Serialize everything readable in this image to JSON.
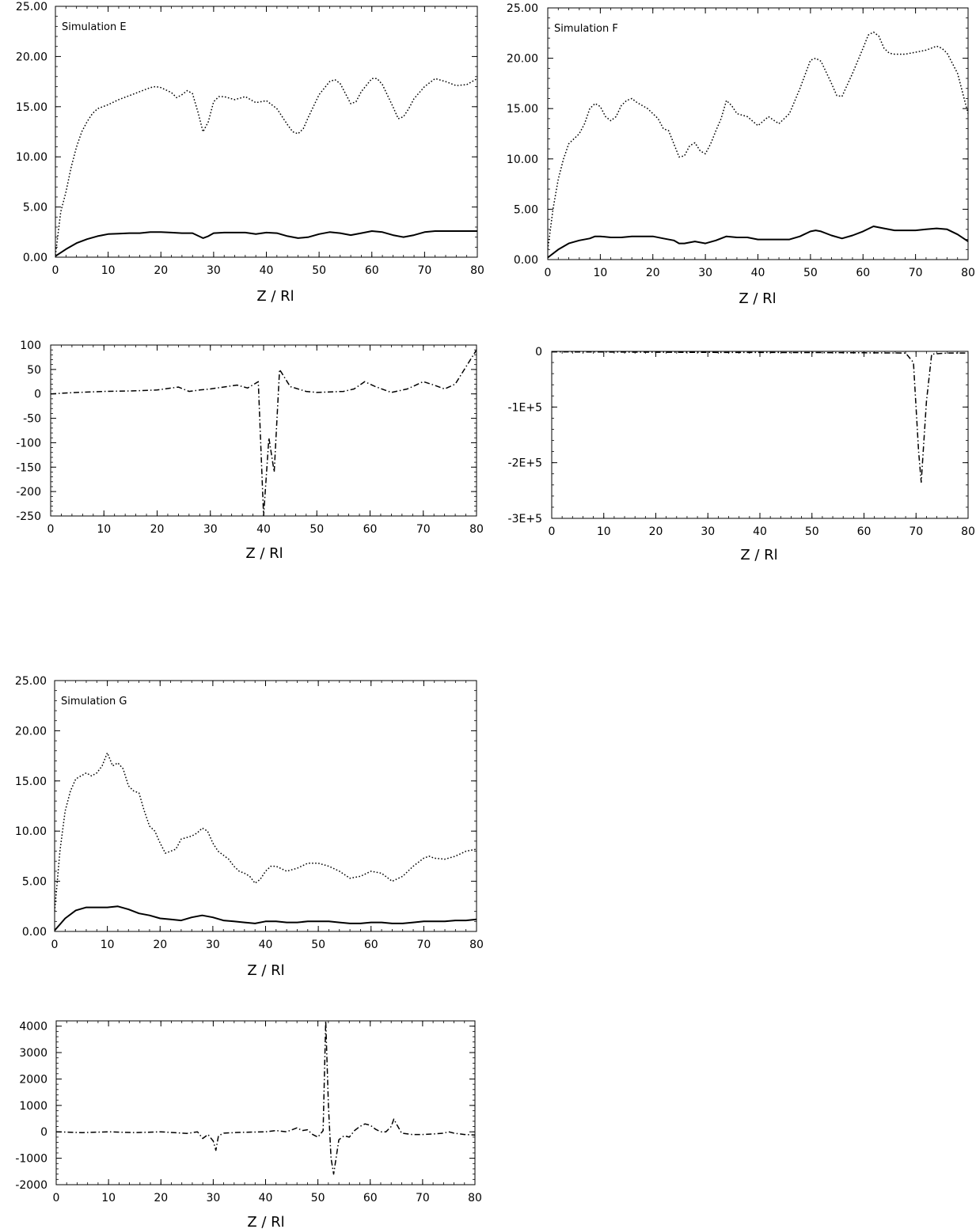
{
  "chart_data": [
    {
      "id": "E-top",
      "type": "line",
      "annotation": "Simulation E",
      "xlabel": "Z / Rl",
      "ylabel": "",
      "xlim": [
        0,
        80
      ],
      "ylim": [
        0,
        25
      ],
      "xticks": [
        0,
        10,
        20,
        30,
        40,
        50,
        60,
        70,
        80
      ],
      "yticks": [
        0,
        5,
        10,
        15,
        20,
        25
      ],
      "ytick_labels": [
        "0.00",
        "5.00",
        "10.00",
        "15.00",
        "20.00",
        "25.00"
      ],
      "series": [
        {
          "style": "dotted",
          "x": [
            0,
            1,
            2,
            3,
            4,
            5,
            6,
            7,
            8,
            9,
            10,
            12,
            14,
            16,
            18,
            19,
            20,
            22,
            23,
            24,
            25,
            26,
            27,
            28,
            29,
            30,
            31,
            32,
            34,
            36,
            38,
            40,
            42,
            44,
            45,
            46,
            47,
            48,
            50,
            52,
            53,
            54,
            56,
            57,
            58,
            60,
            61,
            62,
            64,
            65,
            66,
            67,
            68,
            70,
            72,
            74,
            76,
            78,
            80
          ],
          "y": [
            0.2,
            4.5,
            6.5,
            9,
            11,
            12.5,
            13.5,
            14.3,
            14.8,
            15,
            15.2,
            15.7,
            16.1,
            16.5,
            16.9,
            17,
            16.9,
            16.4,
            15.9,
            16.2,
            16.6,
            16.3,
            14.5,
            12.5,
            13.5,
            15.5,
            16,
            16,
            15.7,
            16,
            15.4,
            15.6,
            14.8,
            13.2,
            12.5,
            12.3,
            12.8,
            14,
            16.2,
            17.5,
            17.7,
            17.3,
            15.3,
            15.5,
            16.5,
            17.8,
            17.8,
            17.2,
            15,
            13.8,
            14,
            14.8,
            15.8,
            17,
            17.8,
            17.5,
            17.1,
            17.2,
            17.8
          ]
        },
        {
          "style": "solid",
          "x": [
            0,
            2,
            4,
            6,
            8,
            10,
            12,
            14,
            16,
            18,
            20,
            22,
            24,
            26,
            28,
            29,
            30,
            32,
            34,
            36,
            38,
            40,
            42,
            44,
            46,
            48,
            50,
            52,
            54,
            56,
            58,
            60,
            62,
            64,
            66,
            68,
            70,
            72,
            74,
            76,
            78,
            80
          ],
          "y": [
            0.1,
            0.8,
            1.4,
            1.8,
            2.1,
            2.3,
            2.35,
            2.4,
            2.4,
            2.5,
            2.5,
            2.45,
            2.4,
            2.4,
            1.9,
            2.1,
            2.4,
            2.45,
            2.45,
            2.45,
            2.3,
            2.45,
            2.4,
            2.1,
            1.9,
            2.0,
            2.3,
            2.5,
            2.4,
            2.2,
            2.4,
            2.6,
            2.5,
            2.2,
            2.0,
            2.2,
            2.5,
            2.6,
            2.6,
            2.6,
            2.6,
            2.6
          ]
        }
      ]
    },
    {
      "id": "F-top",
      "type": "line",
      "annotation": "Simulation F",
      "xlabel": "Z / Rl",
      "ylabel": "",
      "xlim": [
        0,
        80
      ],
      "ylim": [
        0,
        25
      ],
      "xticks": [
        0,
        10,
        20,
        30,
        40,
        50,
        60,
        70,
        80
      ],
      "yticks": [
        0,
        5,
        10,
        15,
        20,
        25
      ],
      "ytick_labels": [
        "0.00",
        "5.00",
        "10.00",
        "15.00",
        "20.00",
        "25.00"
      ],
      "series": [
        {
          "style": "dotted",
          "x": [
            0,
            1,
            2,
            3,
            4,
            6,
            7,
            8,
            9,
            10,
            11,
            12,
            13,
            14,
            15,
            16,
            17,
            19,
            21,
            22,
            23,
            24,
            25,
            26,
            27,
            28,
            29,
            30,
            31,
            32,
            33,
            34,
            35,
            36,
            38,
            40,
            42,
            44,
            46,
            48,
            50,
            51,
            52,
            54,
            55,
            56,
            58,
            60,
            61,
            62,
            63,
            64,
            65,
            66,
            68,
            70,
            72,
            73,
            74,
            75,
            76,
            78,
            80
          ],
          "y": [
            1,
            5,
            8,
            10,
            11.5,
            12.5,
            13.5,
            15,
            15.5,
            15.2,
            14.2,
            13.8,
            14.2,
            15.3,
            15.8,
            16,
            15.6,
            15,
            14,
            13,
            12.8,
            11.5,
            10.2,
            10.3,
            11.3,
            11.6,
            10.8,
            10.5,
            11.5,
            12.8,
            14,
            15.8,
            15.3,
            14.5,
            14.2,
            13.3,
            14.2,
            13.5,
            14.5,
            17,
            19.8,
            20,
            19.7,
            17.5,
            16.3,
            16.2,
            18.5,
            21,
            22.3,
            22.6,
            22.2,
            21,
            20.5,
            20.4,
            20.4,
            20.6,
            20.8,
            21,
            21.2,
            21,
            20.5,
            18.5,
            14.5
          ]
        },
        {
          "style": "solid",
          "x": [
            0,
            2,
            4,
            6,
            8,
            9,
            10,
            12,
            14,
            16,
            18,
            20,
            22,
            24,
            25,
            26,
            27,
            28,
            30,
            32,
            34,
            36,
            38,
            40,
            42,
            44,
            46,
            48,
            50,
            51,
            52,
            54,
            56,
            58,
            60,
            62,
            64,
            66,
            68,
            70,
            72,
            74,
            76,
            78,
            80
          ],
          "y": [
            0.2,
            1.0,
            1.6,
            1.9,
            2.1,
            2.3,
            2.3,
            2.2,
            2.2,
            2.3,
            2.3,
            2.3,
            2.1,
            1.9,
            1.6,
            1.6,
            1.7,
            1.8,
            1.6,
            1.9,
            2.3,
            2.2,
            2.2,
            2.0,
            2.0,
            2.0,
            2.0,
            2.3,
            2.8,
            2.9,
            2.8,
            2.4,
            2.1,
            2.4,
            2.8,
            3.3,
            3.1,
            2.9,
            2.9,
            2.9,
            3.0,
            3.1,
            3.0,
            2.5,
            1.8
          ]
        }
      ]
    },
    {
      "id": "E-bottom",
      "type": "line",
      "annotation": "",
      "xlabel": "Z / Rl",
      "ylabel": "",
      "xlim": [
        0,
        80
      ],
      "ylim": [
        -250,
        100
      ],
      "xticks": [
        0,
        10,
        20,
        30,
        40,
        50,
        60,
        70,
        80
      ],
      "yticks": [
        -250,
        -200,
        -150,
        -100,
        -50,
        0,
        50,
        100
      ],
      "ytick_labels": [
        "-250",
        "-200",
        "-150",
        "-100",
        "-50",
        "0",
        "50",
        "100"
      ],
      "series": [
        {
          "style": "dashdot",
          "x": [
            0,
            5,
            10,
            15,
            20,
            24,
            26,
            28,
            30,
            35,
            37,
            39,
            40,
            41,
            42,
            43,
            45,
            48,
            50,
            55,
            57,
            59,
            61,
            64,
            67,
            70,
            72,
            74,
            76,
            78,
            80
          ],
          "y": [
            0,
            3,
            5,
            6,
            8,
            14,
            5,
            8,
            10,
            18,
            12,
            25,
            -250,
            -90,
            -160,
            50,
            15,
            5,
            3,
            5,
            10,
            25,
            15,
            3,
            10,
            25,
            18,
            10,
            20,
            55,
            90
          ]
        }
      ]
    },
    {
      "id": "F-bottom",
      "type": "line",
      "annotation": "",
      "xlabel": "Z / Rl",
      "ylabel": "",
      "xlim": [
        0,
        80
      ],
      "ylim": [
        -300000,
        0
      ],
      "xticks": [
        0,
        10,
        20,
        30,
        40,
        50,
        60,
        70,
        80
      ],
      "yticks": [
        -300000,
        -200000,
        -100000,
        0
      ],
      "ytick_labels": [
        "-3E+5",
        "-2E+5",
        "-1E+5",
        "0"
      ],
      "series": [
        {
          "style": "dashdot",
          "x": [
            0,
            10,
            20,
            30,
            40,
            50,
            60,
            68,
            69.5,
            70.5,
            71,
            72,
            73,
            76,
            80
          ],
          "y": [
            -800,
            -1200,
            -1500,
            -1800,
            -2000,
            -2200,
            -2500,
            -3000,
            -20000,
            -180000,
            -235000,
            -90000,
            -5000,
            -3000,
            -3000
          ]
        }
      ]
    },
    {
      "id": "G-top",
      "type": "line",
      "annotation": "Simulation G",
      "xlabel": "Z / Rl",
      "ylabel": "",
      "xlim": [
        0,
        80
      ],
      "ylim": [
        0,
        25
      ],
      "xticks": [
        0,
        10,
        20,
        30,
        40,
        50,
        60,
        70,
        80
      ],
      "yticks": [
        0,
        5,
        10,
        15,
        20,
        25
      ],
      "ytick_labels": [
        "0.00",
        "5.00",
        "10.00",
        "15.00",
        "20.00",
        "25.00"
      ],
      "series": [
        {
          "style": "dotted",
          "x": [
            0,
            1,
            2,
            3,
            4,
            5,
            6,
            7,
            8,
            9,
            10,
            11,
            12,
            13,
            14,
            15,
            16,
            17,
            18,
            19,
            20,
            21,
            22,
            23,
            24,
            26,
            27,
            28,
            29,
            30,
            31,
            33,
            34,
            35,
            36,
            37,
            38,
            39,
            40,
            41,
            42,
            44,
            46,
            48,
            50,
            52,
            54,
            56,
            58,
            60,
            62,
            63,
            64,
            66,
            68,
            70,
            71,
            72,
            74,
            76,
            78,
            80
          ],
          "y": [
            2,
            8,
            12,
            14,
            15.2,
            15.5,
            15.8,
            15.5,
            15.8,
            16.5,
            17.8,
            16.5,
            16.8,
            16.2,
            14.5,
            14.0,
            13.8,
            12.0,
            10.5,
            10.0,
            8.8,
            7.8,
            8.0,
            8.2,
            9.2,
            9.5,
            9.8,
            10.3,
            10.0,
            8.8,
            8.0,
            7.2,
            6.5,
            6.0,
            5.8,
            5.5,
            4.8,
            5.2,
            6.0,
            6.5,
            6.5,
            6.0,
            6.3,
            6.8,
            6.8,
            6.5,
            6.0,
            5.3,
            5.5,
            6.0,
            5.8,
            5.4,
            5.0,
            5.5,
            6.5,
            7.3,
            7.5,
            7.3,
            7.2,
            7.5,
            8.0,
            8.2
          ]
        },
        {
          "style": "solid",
          "x": [
            0,
            1,
            2,
            4,
            6,
            8,
            10,
            12,
            14,
            16,
            18,
            20,
            22,
            24,
            26,
            28,
            30,
            32,
            34,
            36,
            38,
            40,
            42,
            44,
            46,
            48,
            50,
            52,
            54,
            56,
            58,
            60,
            62,
            64,
            66,
            68,
            70,
            72,
            74,
            76,
            78,
            80
          ],
          "y": [
            0.1,
            0.7,
            1.3,
            2.1,
            2.4,
            2.4,
            2.4,
            2.5,
            2.2,
            1.8,
            1.6,
            1.3,
            1.2,
            1.1,
            1.4,
            1.6,
            1.4,
            1.1,
            1.0,
            0.9,
            0.8,
            1.0,
            1.0,
            0.9,
            0.9,
            1.0,
            1.0,
            1.0,
            0.9,
            0.8,
            0.8,
            0.9,
            0.9,
            0.8,
            0.8,
            0.9,
            1.0,
            1.0,
            1.0,
            1.1,
            1.1,
            1.2
          ]
        }
      ]
    },
    {
      "id": "G-bottom",
      "type": "line",
      "annotation": "",
      "xlabel": "Z / Rl",
      "ylabel": "",
      "xlim": [
        0,
        80
      ],
      "ylim": [
        -2000,
        4200
      ],
      "xticks": [
        0,
        10,
        20,
        30,
        40,
        50,
        60,
        70,
        80
      ],
      "yticks": [
        -2000,
        -1000,
        0,
        1000,
        2000,
        3000,
        4000
      ],
      "ytick_labels": [
        "-2000",
        "-1000",
        "0",
        "1000",
        "2000",
        "3000",
        "4000"
      ],
      "series": [
        {
          "style": "dashdot",
          "x": [
            0,
            5,
            10,
            15,
            20,
            25,
            27,
            28,
            29,
            30,
            30.5,
            31,
            32,
            35,
            40,
            42,
            44,
            46,
            47,
            48,
            49,
            50,
            51,
            51.5,
            52,
            52.5,
            53,
            54,
            55,
            56,
            57,
            58,
            59,
            60,
            61,
            62,
            63,
            64,
            64.5,
            65,
            66,
            68,
            70,
            72,
            74,
            75,
            76,
            78,
            80
          ],
          "y": [
            0,
            -30,
            0,
            -30,
            0,
            -60,
            0,
            -250,
            -100,
            -350,
            -700,
            -150,
            -50,
            -20,
            0,
            50,
            0,
            150,
            50,
            80,
            -100,
            -200,
            50,
            4200,
            1000,
            -1000,
            -1600,
            -300,
            -150,
            -200,
            50,
            200,
            300,
            250,
            100,
            0,
            0,
            200,
            480,
            300,
            -50,
            -100,
            -100,
            -80,
            -50,
            0,
            -50,
            -100,
            -120
          ]
        }
      ]
    }
  ]
}
